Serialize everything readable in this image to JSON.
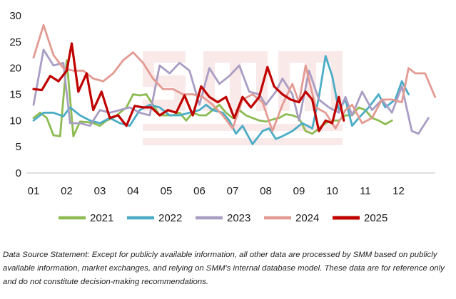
{
  "chart_data": {
    "type": "line",
    "title": "",
    "xlabel": "",
    "ylabel": "",
    "ylim": [
      0,
      30
    ],
    "y_ticks": [
      "0",
      "5",
      "10",
      "15",
      "20",
      "25",
      "30"
    ],
    "x_ticks": [
      "01",
      "02",
      "03",
      "04",
      "05",
      "06",
      "07",
      "08",
      "09",
      "10",
      "11",
      "12"
    ],
    "grid": false,
    "legend_position": "bottom",
    "series": [
      {
        "name": "2021",
        "color": "#8dbb52",
        "x": [
          1.0,
          1.2,
          1.4,
          1.6,
          1.8,
          2.0,
          2.2,
          2.4,
          2.6,
          2.8,
          3.0,
          3.2,
          3.4,
          3.6,
          3.8,
          4.0,
          4.2,
          4.4,
          4.6,
          4.8,
          5.0,
          5.2,
          5.4,
          5.6,
          5.8,
          6.0,
          6.2,
          6.4,
          6.6,
          6.8,
          7.0,
          7.2,
          7.4,
          7.6,
          7.8,
          8.0,
          8.2,
          8.4,
          8.6,
          8.8,
          9.0,
          9.2,
          9.4,
          9.6,
          9.8,
          10.0,
          10.2,
          10.4,
          10.6,
          10.8,
          11.0,
          11.2,
          11.4,
          11.6,
          11.8
        ],
        "y": [
          10.5,
          11.5,
          10.5,
          7.2,
          7.0,
          21.5,
          7.0,
          9.8,
          9.7,
          9.5,
          9.0,
          10.0,
          10.5,
          11.5,
          12.5,
          15.0,
          14.8,
          15.0,
          13.0,
          11.0,
          11.0,
          11.0,
          11.5,
          10.0,
          11.5,
          11.0,
          11.0,
          12.0,
          13.0,
          11.5,
          10.5,
          12.0,
          11.0,
          10.5,
          10.0,
          9.8,
          10.2,
          10.5,
          11.2,
          11.0,
          10.5,
          8.0,
          7.5,
          8.5,
          9.5,
          10.0,
          10.0,
          11.0,
          11.0,
          12.5,
          12.0,
          10.5,
          10.0,
          9.3,
          10.0
        ]
      },
      {
        "name": "2022",
        "color": "#4bacc6",
        "x": [
          1.0,
          1.3,
          1.6,
          1.9,
          2.1,
          2.4,
          2.7,
          3.0,
          3.3,
          3.6,
          3.9,
          4.2,
          4.5,
          4.8,
          5.1,
          5.4,
          5.7,
          6.0,
          6.2,
          6.4,
          6.7,
          6.9,
          7.1,
          7.3,
          7.6,
          7.9,
          8.1,
          8.3,
          8.5,
          8.8,
          9.1,
          9.4,
          9.6,
          9.8,
          10.0,
          10.2,
          10.4,
          10.6,
          10.8,
          11.1,
          11.4,
          11.6,
          11.9,
          12.1,
          12.3
        ],
        "y": [
          10.0,
          11.5,
          11.5,
          10.8,
          12.5,
          11.0,
          10.0,
          9.5,
          10.5,
          9.5,
          9.0,
          12.0,
          13.0,
          12.5,
          11.0,
          11.0,
          11.5,
          12.0,
          13.0,
          12.0,
          11.5,
          10.0,
          7.5,
          9.0,
          5.5,
          8.0,
          8.5,
          6.5,
          7.0,
          8.0,
          9.5,
          8.5,
          14.5,
          22.3,
          18.5,
          12.0,
          14.0,
          9.0,
          10.5,
          12.5,
          15.0,
          12.5,
          14.0,
          17.5,
          15.0
        ]
      },
      {
        "name": "2023",
        "color": "#a99dc4",
        "x": [
          1.0,
          1.3,
          1.6,
          1.9,
          2.1,
          2.4,
          2.7,
          3.0,
          3.3,
          3.6,
          3.9,
          4.2,
          4.5,
          4.8,
          5.1,
          5.4,
          5.7,
          6.0,
          6.3,
          6.6,
          6.9,
          7.2,
          7.5,
          7.8,
          8.0,
          8.3,
          8.5,
          8.8,
          9.0,
          9.3,
          9.6,
          9.9,
          10.2,
          10.4,
          10.6,
          10.9,
          11.2,
          11.5,
          11.8,
          12.1,
          12.4,
          12.6,
          12.9
        ],
        "y": [
          13.0,
          23.5,
          20.5,
          21.0,
          9.5,
          9.5,
          9.0,
          12.0,
          11.5,
          12.0,
          12.5,
          11.5,
          11.0,
          20.5,
          19.0,
          21.0,
          19.5,
          13.0,
          20.0,
          17.0,
          18.5,
          20.5,
          15.5,
          15.0,
          13.0,
          15.5,
          18.0,
          15.0,
          10.0,
          19.5,
          14.0,
          12.5,
          11.5,
          14.5,
          11.0,
          15.5,
          12.0,
          14.0,
          11.5,
          16.5,
          8.0,
          7.5,
          10.5
        ]
      },
      {
        "name": "2024",
        "color": "#e39a92",
        "x": [
          1.0,
          1.3,
          1.6,
          1.9,
          2.2,
          2.5,
          2.8,
          3.1,
          3.4,
          3.7,
          4.0,
          4.3,
          4.6,
          4.9,
          5.2,
          5.5,
          5.8,
          6.1,
          6.4,
          6.7,
          7.0,
          7.3,
          7.6,
          7.9,
          8.2,
          8.5,
          8.8,
          9.0,
          9.2,
          9.5,
          9.8,
          10.1,
          10.4,
          10.6,
          10.9,
          11.2,
          11.5,
          11.8,
          12.1,
          12.3,
          12.5,
          12.8,
          13.1
        ],
        "y": [
          22.0,
          28.2,
          22.5,
          20.0,
          19.5,
          19.5,
          18.0,
          17.5,
          19.0,
          21.5,
          23.0,
          21.0,
          18.0,
          16.0,
          16.0,
          15.0,
          15.0,
          14.5,
          13.0,
          11.0,
          8.5,
          14.0,
          15.0,
          13.5,
          8.0,
          13.0,
          17.0,
          13.5,
          20.5,
          12.5,
          11.5,
          8.5,
          12.0,
          13.0,
          9.5,
          10.5,
          14.0,
          14.0,
          13.5,
          20.0,
          19.0,
          19.0,
          14.5
        ]
      },
      {
        "name": "2025",
        "color": "#c00000",
        "x": [
          1.0,
          1.25,
          1.5,
          1.75,
          2.0,
          2.15,
          2.35,
          2.6,
          2.8,
          3.05,
          3.3,
          3.55,
          3.8,
          4.05,
          4.3,
          4.55,
          4.8,
          5.05,
          5.3,
          5.55,
          5.8,
          6.05,
          6.3,
          6.55,
          6.8,
          7.05,
          7.3,
          7.55,
          7.8,
          8.05,
          8.25,
          8.5,
          8.75,
          9.0,
          9.2,
          9.4,
          9.6,
          9.8,
          10.0,
          10.2,
          10.35
        ],
        "y": [
          16.0,
          15.8,
          18.5,
          17.5,
          19.5,
          24.7,
          15.5,
          19.0,
          12.0,
          15.5,
          10.5,
          11.0,
          9.0,
          12.8,
          12.5,
          12.5,
          11.0,
          12.0,
          11.5,
          14.8,
          11.0,
          16.5,
          14.5,
          13.5,
          14.5,
          10.5,
          14.5,
          12.5,
          14.5,
          20.2,
          16.5,
          15.0,
          14.0,
          13.5,
          15.5,
          14.0,
          8.0,
          10.0,
          9.5,
          14.5,
          10.0
        ]
      }
    ]
  },
  "source_note": "Data Source Statement: Except for publicly available information, all other data are processed by SMM based on publicly available information, market exchanges, and relying on SMM's internal database model. These data are for reference only and do not constitute decision-making recommendations."
}
